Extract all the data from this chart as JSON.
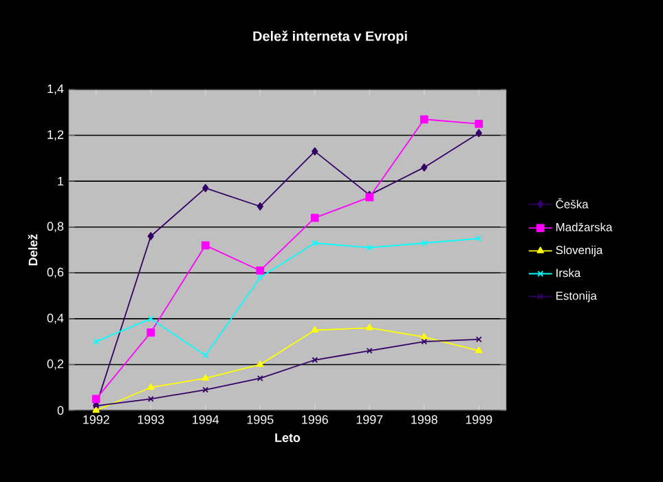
{
  "chart_data": {
    "type": "line",
    "title": "Delež interneta v Evropi",
    "xlabel": "Leto",
    "ylabel": "Delež",
    "categories": [
      "1992",
      "1993",
      "1994",
      "1995",
      "1996",
      "1997",
      "1998",
      "1999"
    ],
    "series": [
      {
        "name": "Češka",
        "color": "#330066",
        "marker": "diamond",
        "values": [
          0.02,
          0.76,
          0.97,
          0.89,
          1.13,
          0.94,
          1.06,
          1.21
        ]
      },
      {
        "name": "Madžarska",
        "color": "#ff00ff",
        "marker": "square",
        "values": [
          0.05,
          0.34,
          0.72,
          0.61,
          0.84,
          0.93,
          1.27,
          1.25
        ]
      },
      {
        "name": "Slovenija",
        "color": "#ffff00",
        "marker": "triangle",
        "values": [
          0,
          0.1,
          0.14,
          0.2,
          0.35,
          0.36,
          0.32,
          0.26
        ]
      },
      {
        "name": "Irska",
        "color": "#00ffff",
        "marker": "cross",
        "values": [
          0.3,
          0.4,
          0.24,
          0.58,
          0.73,
          0.71,
          0.73,
          0.75
        ]
      },
      {
        "name": "Estonija",
        "color": "#330066",
        "marker": "cross",
        "values": [
          0.02,
          0.05,
          0.09,
          0.14,
          0.22,
          0.26,
          0.3,
          0.31
        ]
      }
    ],
    "ylim": [
      0,
      1.4
    ],
    "yticks": [
      0,
      {
        "value": 0.2,
        "label": "0,2"
      },
      {
        "value": 0.4,
        "label": "0,4"
      },
      {
        "value": 0.6,
        "label": "0,6"
      },
      {
        "value": 0.8,
        "label": "0,8"
      },
      1,
      {
        "value": 1.2,
        "label": "1,2"
      },
      {
        "value": 1.4,
        "label": "1,4"
      }
    ],
    "grid": "y",
    "legend": "right"
  }
}
